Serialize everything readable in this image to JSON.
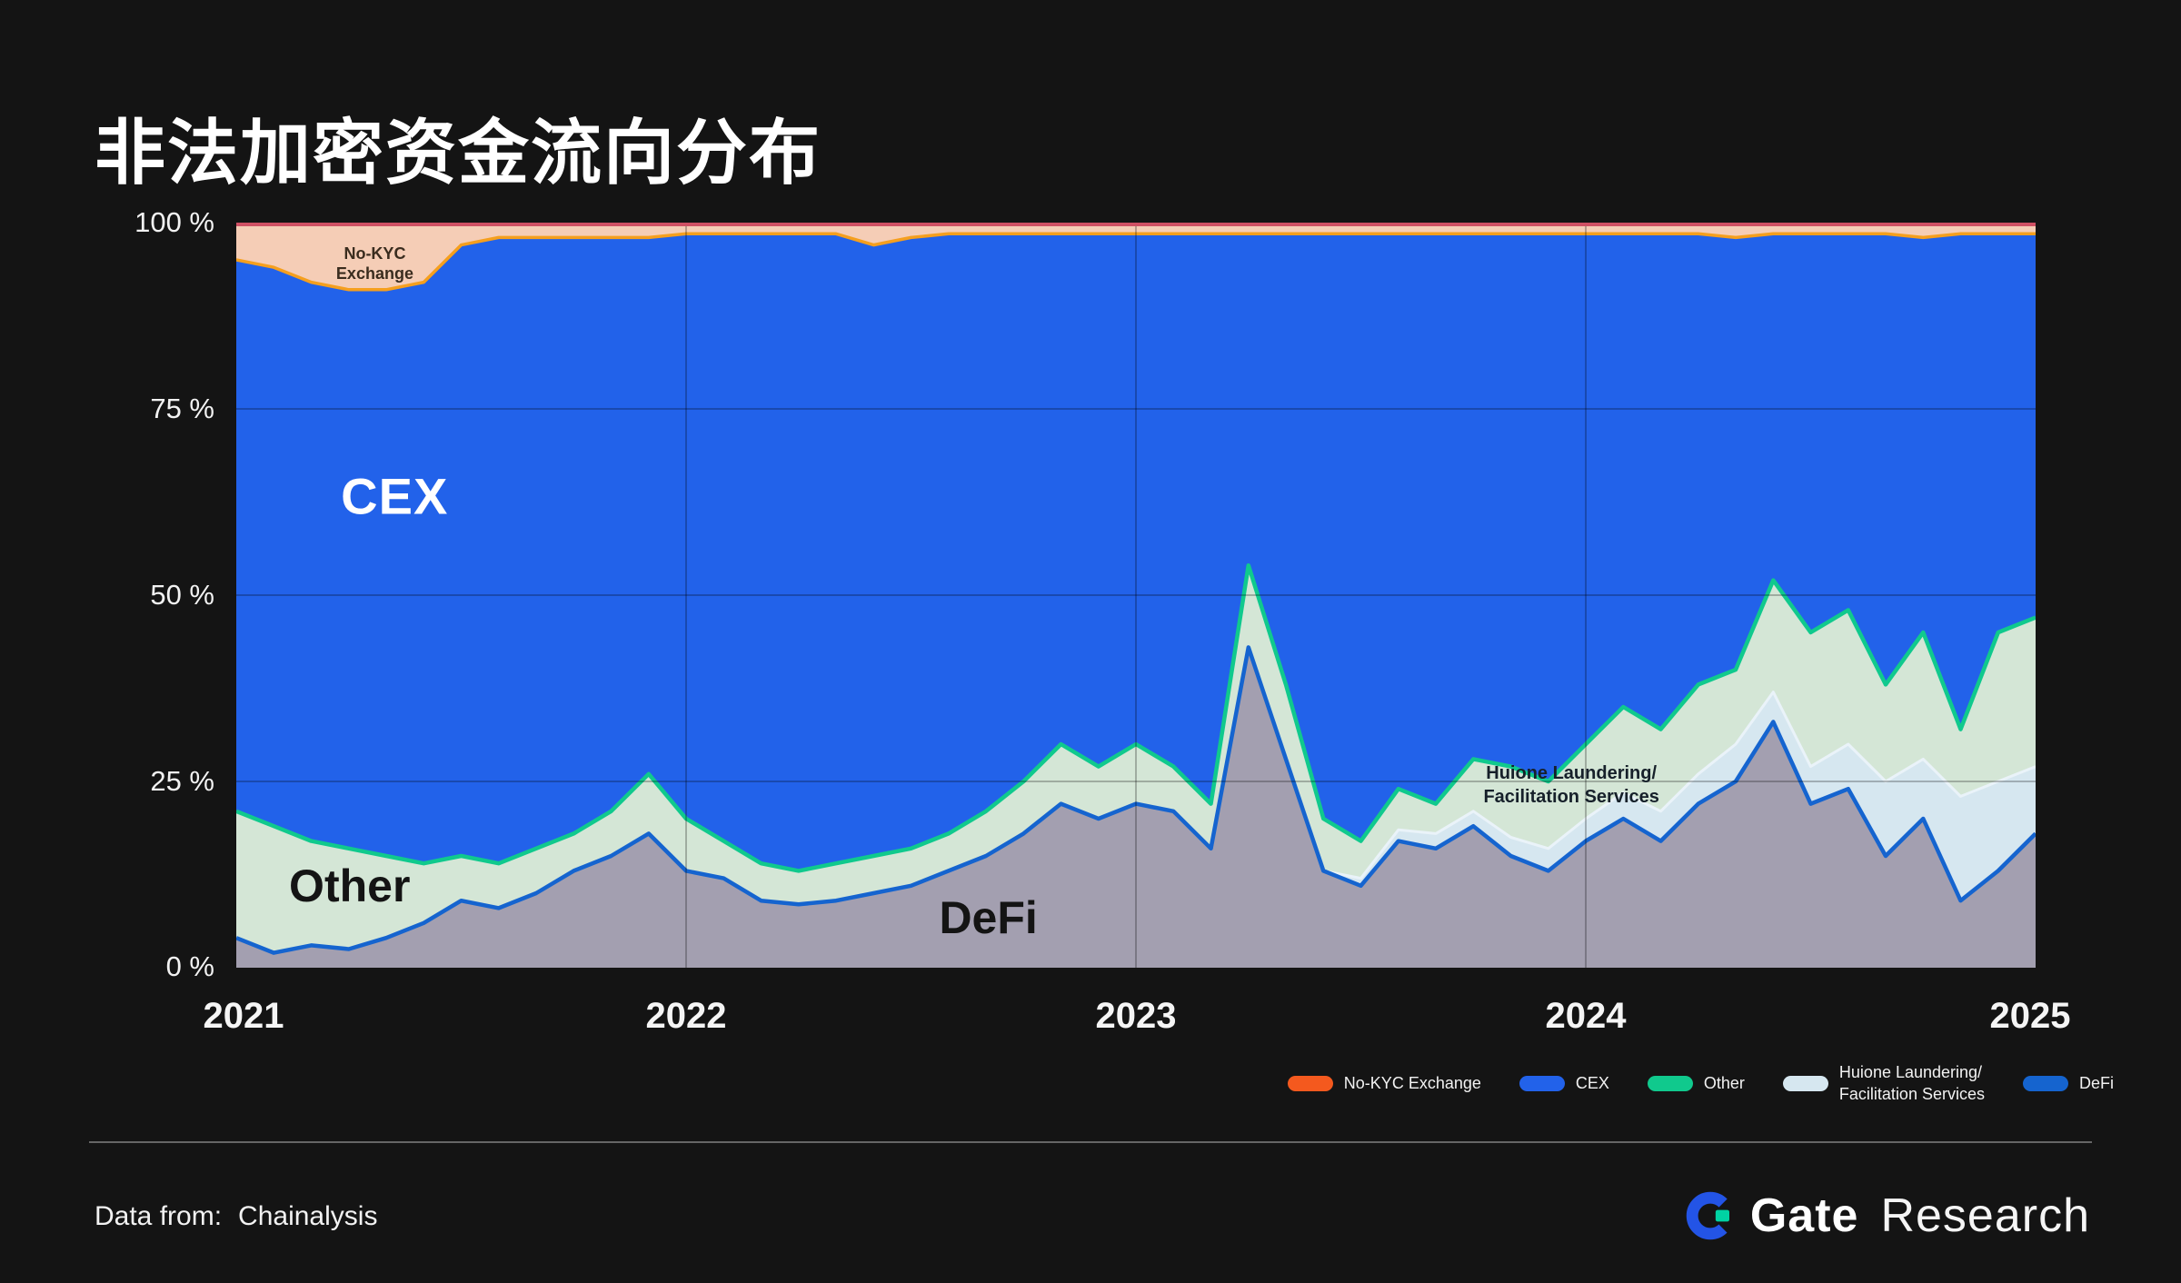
{
  "header": {
    "title": "非法加密资金流向分布"
  },
  "axis": {
    "y_ticks": [
      "100 %",
      "75 %",
      "50 %",
      "25 %",
      "0 %"
    ],
    "x_ticks": [
      "2021",
      "2022",
      "2023",
      "2024",
      "2025"
    ]
  },
  "annotations": {
    "no_kyc": {
      "line1": "No-KYC",
      "line2": "Exchange"
    },
    "cex": "CEX",
    "other": "Other",
    "defi": "DeFi",
    "huione": {
      "line1": "Huione Laundering/",
      "line2": "Facilitation Services"
    }
  },
  "legend": [
    {
      "label": "No-KYC Exchange",
      "color": "#f4591e"
    },
    {
      "label": "CEX",
      "color": "#2262ea"
    },
    {
      "label": "Other",
      "color": "#10c98d"
    },
    {
      "label": "Huione Laundering/",
      "label2": "Facilitation Services",
      "color": "#d6e7f0"
    },
    {
      "label": "DeFi",
      "color": "#1564cf"
    }
  ],
  "footer": {
    "data_from": "Data from:",
    "source": "Chainalysis",
    "brand_bold": "Gate",
    "brand_light": "Research"
  },
  "chart_data": {
    "type": "area",
    "title": "非法加密资金流向分布",
    "stacked": "percent",
    "x_start": 2021,
    "x_end": 2025,
    "points_per_year": 12,
    "x_ticks": [
      2021,
      2022,
      2023,
      2024,
      2025
    ],
    "y_ticks_percent": [
      0,
      25,
      50,
      75,
      100
    ],
    "ylim": [
      0,
      100
    ],
    "legend_position": "bottom-right",
    "grid": {
      "v_years": [
        2022,
        2023,
        2024
      ],
      "h_percents": [
        25,
        50,
        75
      ],
      "color": "rgba(0,0,0,0.25)"
    },
    "top_edge_color": "#cf5064",
    "note": "Percent shares estimated from the chart; CEX is the remainder to 100% at each point. Points are monthly from Jan 2021 to Jan 2025, stacked bottom-to-top in series order.",
    "series": [
      {
        "name": "DeFi",
        "fill": "#a39fb0",
        "stroke": "#1564cf",
        "stroke_width": 4.5,
        "stroke_order": 2,
        "values": [
          4,
          2,
          3,
          2.5,
          4,
          6,
          9,
          8,
          10,
          13,
          15,
          18,
          13,
          12,
          9,
          8.5,
          9,
          10,
          11,
          13,
          15,
          18,
          22,
          20,
          22,
          21,
          16,
          43,
          28,
          13,
          11,
          17,
          16,
          19,
          15,
          13,
          17,
          20,
          17,
          22,
          25,
          33,
          22,
          24,
          15,
          20,
          9,
          13,
          18
        ]
      },
      {
        "name": "Huione Laundering/Facilitation Services",
        "fill": "#d6e7f0",
        "stroke": "#eaf3f9",
        "stroke_width": 3,
        "stroke_order": 1,
        "values": [
          0,
          0,
          0,
          0,
          0,
          0,
          0,
          0,
          0,
          0,
          0,
          0,
          0,
          0,
          0,
          0,
          0,
          0,
          0,
          0,
          0,
          0,
          0,
          0,
          0,
          0,
          0,
          0,
          0,
          0,
          1,
          1.5,
          2,
          2,
          2.5,
          3,
          3,
          3.5,
          4,
          4,
          5,
          4,
          5,
          6,
          10,
          8,
          14,
          12,
          9
        ]
      },
      {
        "name": "Other",
        "fill": "#d4e6d6",
        "stroke": "#10c98d",
        "stroke_width": 4.5,
        "stroke_order": 3,
        "values": [
          17,
          17,
          14,
          13.5,
          11,
          8,
          6,
          6,
          6,
          5,
          6,
          8,
          7,
          5,
          5,
          4.5,
          5,
          5,
          5,
          5,
          6,
          7,
          8,
          7,
          8,
          6,
          6,
          11,
          10,
          7,
          5,
          5.5,
          4,
          7,
          9.5,
          9,
          10,
          11.5,
          11,
          12,
          10,
          15,
          18,
          18,
          13,
          17,
          9,
          20,
          20
        ]
      },
      {
        "name": "CEX",
        "fill": "#2262ea",
        "values": "remainder"
      },
      {
        "name": "No-KYC Exchange",
        "fill": "#f5cdb6",
        "stroke": "#f59f1e",
        "stroke_edge": "bottom",
        "stroke_width": 3.5,
        "stroke_order": 4,
        "values": [
          5,
          6,
          8,
          9,
          9,
          8,
          3,
          2,
          2,
          2,
          2,
          2,
          1.5,
          1.5,
          1.5,
          1.5,
          1.5,
          3,
          2,
          1.5,
          1.5,
          1.5,
          1.5,
          1.5,
          1.5,
          1.5,
          1.5,
          1.5,
          1.5,
          1.5,
          1.5,
          1.5,
          1.5,
          1.5,
          1.5,
          1.5,
          1.5,
          1.5,
          1.5,
          1.5,
          2,
          1.5,
          1.5,
          1.5,
          1.5,
          2,
          1.5,
          1.5,
          1.5
        ]
      }
    ]
  }
}
